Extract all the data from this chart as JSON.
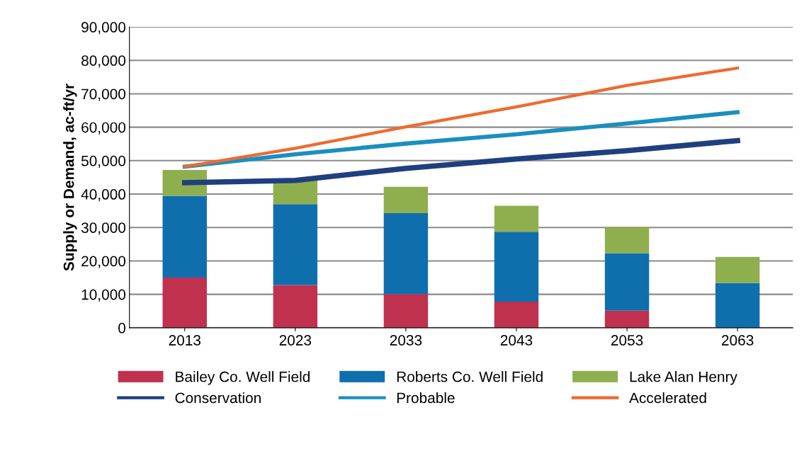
{
  "chart_data": {
    "type": "bar",
    "stacked": true,
    "ylabel": "Supply or Demand, ac-ft/yr",
    "categories": [
      "2013",
      "2023",
      "2033",
      "2043",
      "2053",
      "2063"
    ],
    "series": [
      {
        "name": "Bailey Co. Well Field",
        "color": "#c0304f",
        "values": [
          15000,
          12800,
          10100,
          7800,
          5100,
          0
        ]
      },
      {
        "name": "Roberts Co. Well Field",
        "color": "#0f6fad",
        "values": [
          24500,
          24200,
          24200,
          20900,
          17200,
          13400
        ]
      },
      {
        "name": "Lake Alan Henry",
        "color": "#8faf4f",
        "values": [
          7700,
          7100,
          7900,
          7800,
          7800,
          7800
        ]
      },
      {
        "name": "Conservation",
        "type": "line",
        "color": "#1f3f7f",
        "values": [
          43400,
          44100,
          47700,
          50500,
          53000,
          56000
        ]
      },
      {
        "name": "Probable",
        "type": "line",
        "color": "#1a8fbf",
        "values": [
          48200,
          51900,
          55100,
          57900,
          61100,
          64500
        ]
      },
      {
        "name": "Accelerated",
        "type": "line",
        "color": "#ef6a2f",
        "values": [
          48200,
          53700,
          60100,
          66100,
          72500,
          77700
        ]
      }
    ],
    "ylim": [
      0,
      90000
    ],
    "yticks": [
      0,
      {
        "value": 10000,
        "label": "10,000"
      },
      {
        "value": 20000,
        "label": "20,000"
      },
      {
        "value": 30000,
        "label": "30,000"
      },
      {
        "value": 40000,
        "label": "40,000"
      },
      {
        "value": 50000,
        "label": "50,000"
      },
      {
        "value": 60000,
        "label": "60,000"
      },
      {
        "value": 70000,
        "label": "70,000"
      },
      {
        "value": 80000,
        "label": "80,000"
      },
      {
        "value": 90000,
        "label": "90,000"
      }
    ],
    "grid": "y",
    "legend": "bottom",
    "marker": "none",
    "line_style": "solid"
  }
}
